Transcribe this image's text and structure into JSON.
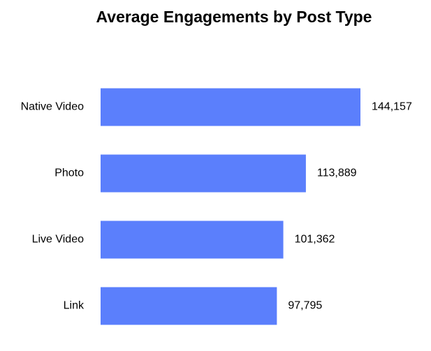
{
  "chart_data": {
    "type": "bar",
    "orientation": "horizontal",
    "title": "Average Engagements by Post Type",
    "categories": [
      "Native Video",
      "Photo",
      "Live Video",
      "Link"
    ],
    "values": [
      144157,
      113889,
      101362,
      97795
    ],
    "value_labels": [
      "144,157",
      "113,889",
      "101,362",
      "97,795"
    ],
    "color": "#5b7ffc"
  }
}
